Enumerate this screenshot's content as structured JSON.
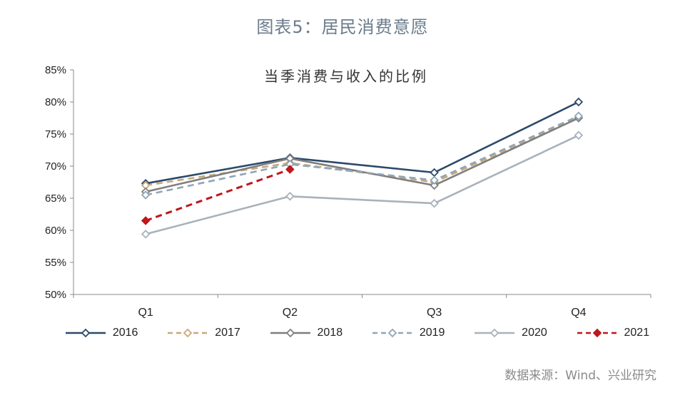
{
  "figure_title": "图表5：居民消费意愿",
  "source": "数据来源：Wind、兴业研究",
  "chart_data": {
    "type": "line",
    "title": "当季消费与收入的比例",
    "xlabel": "",
    "ylabel": "",
    "categories": [
      "Q1",
      "Q2",
      "Q3",
      "Q4"
    ],
    "ylim": [
      50,
      85
    ],
    "yticks": [
      50,
      55,
      60,
      65,
      70,
      75,
      80,
      85
    ],
    "ytick_labels": [
      "50%",
      "55%",
      "60%",
      "65%",
      "70%",
      "75%",
      "80%",
      "85%"
    ],
    "grid": false,
    "legend_position": "bottom",
    "series": [
      {
        "name": "2016",
        "values": [
          67.3,
          71.3,
          69.0,
          80.0
        ],
        "color": "#2b4a6b",
        "dash": "solid",
        "marker": "diamond-open"
      },
      {
        "name": "2017",
        "values": [
          67.0,
          70.5,
          67.5,
          77.5
        ],
        "color": "#c9a87a",
        "dash": "dashed",
        "marker": "diamond-open"
      },
      {
        "name": "2018",
        "values": [
          66.0,
          71.2,
          67.0,
          77.5
        ],
        "color": "#7f7f7f",
        "dash": "solid",
        "marker": "diamond-open"
      },
      {
        "name": "2019",
        "values": [
          65.5,
          70.3,
          67.8,
          77.8
        ],
        "color": "#8fa6b8",
        "dash": "dashed",
        "marker": "diamond-open"
      },
      {
        "name": "2020",
        "values": [
          59.4,
          65.3,
          64.2,
          74.8
        ],
        "color": "#a8b2bb",
        "dash": "solid",
        "marker": "diamond-open"
      },
      {
        "name": "2021",
        "values": [
          61.5,
          69.5,
          null,
          null
        ],
        "color": "#c0161c",
        "dash": "dashed",
        "marker": "diamond-filled"
      }
    ]
  }
}
